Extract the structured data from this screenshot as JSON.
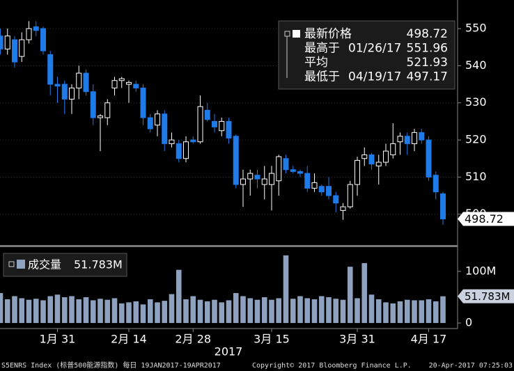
{
  "chart_data": [
    {
      "type": "candlestick",
      "categories": [
        null,
        null,
        null,
        null,
        null,
        null,
        null,
        null,
        "1月 31",
        null,
        null,
        null,
        null,
        null,
        null,
        null,
        null,
        null,
        "2月 14",
        null,
        null,
        null,
        null,
        null,
        null,
        null,
        null,
        "2月 28",
        null,
        null,
        null,
        null,
        null,
        null,
        null,
        null,
        null,
        null,
        "3月 15",
        null,
        null,
        null,
        null,
        null,
        null,
        null,
        null,
        null,
        null,
        null,
        "3月 31",
        null,
        null,
        null,
        null,
        null,
        null,
        null,
        null,
        null,
        "4月 17",
        null,
        null
      ],
      "x_label": "2017",
      "open": [
        548,
        544.5,
        547,
        542.5,
        547,
        550.5,
        550,
        543,
        535,
        535,
        531,
        534,
        538,
        533,
        526,
        526,
        534,
        536,
        535,
        535,
        534,
        526,
        524,
        527,
        519,
        519,
        515,
        520,
        519.5,
        528,
        525,
        522.5,
        525,
        521,
        508,
        509.5,
        510.5,
        508,
        508,
        509,
        515,
        512,
        511.5,
        511,
        507,
        507.5,
        507.5,
        505,
        501,
        502,
        508,
        515,
        516,
        513,
        514,
        516,
        519.5,
        521,
        519,
        522,
        520,
        510.5,
        505.5
      ],
      "high": [
        550,
        550,
        548,
        549,
        552,
        551.96,
        550.5,
        544,
        537,
        536,
        535,
        540,
        539,
        535,
        527,
        531,
        537,
        537,
        536,
        536,
        535,
        527,
        528,
        528,
        522,
        520,
        521,
        521,
        532,
        530,
        527,
        526,
        526,
        521.5,
        512,
        512,
        512,
        513,
        513,
        516,
        516,
        513,
        512,
        513,
        511,
        508,
        510,
        506,
        503,
        509,
        515.5,
        518,
        516.5,
        516,
        519,
        524.5,
        522,
        522,
        523,
        523,
        521,
        511.5,
        506
      ],
      "low": [
        543,
        543,
        539.5,
        541,
        546,
        548,
        543,
        532,
        530,
        527,
        527,
        531,
        532,
        524,
        517,
        524,
        532,
        534,
        530,
        533,
        524,
        522,
        521,
        517,
        518,
        514,
        514,
        519,
        519,
        525,
        522,
        521,
        519,
        507,
        502,
        505,
        507,
        504,
        501,
        505,
        511,
        511,
        510,
        506,
        506,
        505,
        504,
        500.5,
        498.5,
        501.5,
        505,
        513,
        512,
        508,
        513,
        515,
        516,
        516,
        517,
        519,
        509,
        504,
        497.17
      ],
      "close": [
        544.5,
        548,
        541,
        547,
        550,
        549.5,
        544,
        535,
        534.5,
        531,
        534,
        538,
        533,
        526,
        526.5,
        530,
        536,
        536.5,
        535.5,
        534,
        526,
        523,
        527,
        519,
        520,
        515,
        519.5,
        519.5,
        529,
        525.5,
        523.5,
        525,
        520.5,
        508,
        509.5,
        511,
        509.5,
        509.5,
        511,
        515.5,
        512,
        511.5,
        511,
        507,
        508.5,
        506,
        505,
        503,
        502,
        508,
        514.5,
        516,
        513.5,
        514,
        517,
        519,
        521,
        519,
        522,
        520,
        510,
        506,
        498.72
      ],
      "up_color": "#ffffff",
      "down_color": "#1f7be8",
      "ylim": [
        491.7,
        557.7
      ],
      "yticks": [
        550,
        540,
        530,
        520,
        510,
        500
      ],
      "grid": true,
      "legend": [
        {
          "label": "最新价格",
          "value": 498.72
        },
        {
          "label": "最高于",
          "date": "01/26/17",
          "value": 551.96
        },
        {
          "label": "平均",
          "value": 521.93
        },
        {
          "label": "最低于",
          "date": "04/19/17",
          "value": 497.17
        }
      ]
    },
    {
      "type": "bar",
      "values": [
        58,
        46,
        52,
        48,
        45,
        47,
        44,
        52,
        55,
        50,
        52,
        46,
        50,
        44,
        47,
        45,
        48,
        38,
        40,
        42,
        36,
        46,
        40,
        43,
        56,
        103,
        46,
        52,
        45,
        42,
        45,
        40,
        44,
        58,
        52,
        48,
        45,
        50,
        45,
        48,
        131,
        47,
        52,
        48,
        46,
        52,
        50,
        47,
        45,
        109,
        48,
        116,
        55,
        46,
        40,
        38,
        42,
        45,
        44,
        44,
        46,
        42,
        51.783
      ],
      "color": "#8ea2bf",
      "ylim": [
        -8,
        147
      ],
      "yticks": [
        {
          "value": 100,
          "label": "100M"
        },
        0
      ],
      "legend": [
        {
          "label": "成交量",
          "value": {
            "value": 51.783,
            "label": "51.783M"
          }
        }
      ]
    }
  ],
  "footer": [
    "S5ENRS Index (标普500能源指数) 每日 19JAN2017-19APR2017",
    "Copyright© 2017 Bloomberg Finance L.P.",
    "20-Apr-2017 07:25:03"
  ]
}
